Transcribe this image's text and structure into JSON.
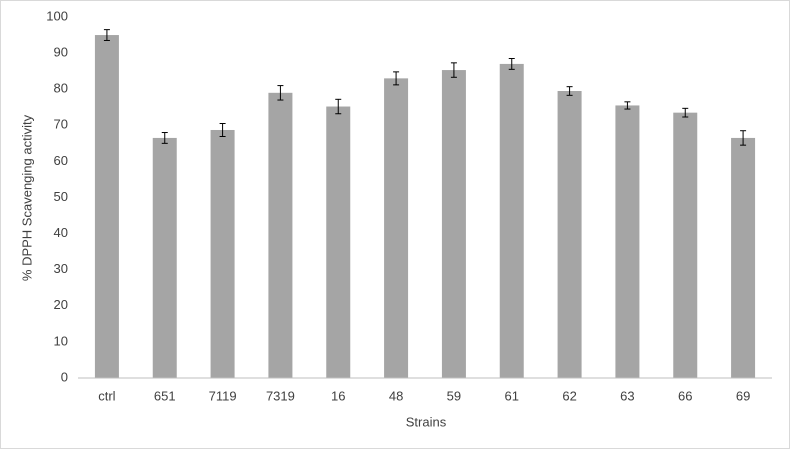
{
  "chart_data": {
    "type": "bar",
    "x_label": "Strains",
    "y_label": "% DPPH Scavenging activity",
    "categories": [
      "ctrl",
      "651",
      "7119",
      "7319",
      "16",
      "48",
      "59",
      "61",
      "62",
      "63",
      "66",
      "69"
    ],
    "values": [
      95,
      66.5,
      68.7,
      79,
      75.2,
      83,
      85.3,
      87,
      79.5,
      75.5,
      73.5,
      66.5
    ],
    "errors": [
      1.5,
      1.5,
      1.8,
      2,
      2,
      1.8,
      2,
      1.5,
      1.2,
      1,
      1.2,
      2
    ],
    "color": "#a5a5a5",
    "ylim": [
      0,
      100
    ],
    "yticks": [
      0,
      10,
      20,
      30,
      40,
      50,
      60,
      70,
      80,
      90,
      100
    ],
    "grid": false
  }
}
